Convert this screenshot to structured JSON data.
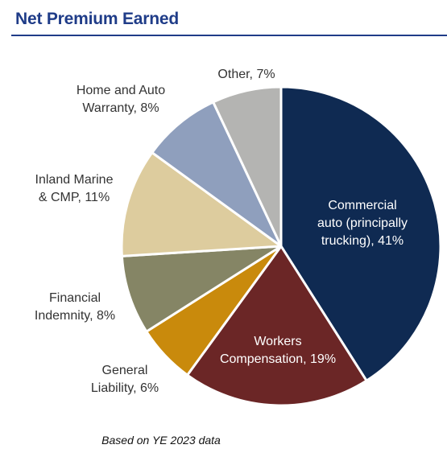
{
  "title": "Net Premium Earned",
  "footnote": "Based on YE 2023 data",
  "chart_data": {
    "type": "pie",
    "title": "Net Premium Earned",
    "unit": "%",
    "slices": [
      {
        "label_lines": [
          "Commercial",
          "auto (principally",
          "trucking), 41%"
        ],
        "category": "Commercial auto (principally trucking)",
        "value": 41,
        "color": "#0f2a52",
        "label_color": "#ffffff",
        "label_inside": true
      },
      {
        "label_lines": [
          "Workers",
          "Compensation, 19%"
        ],
        "category": "Workers Compensation",
        "value": 19,
        "color": "#6b2626",
        "label_color": "#ffffff",
        "label_inside": true
      },
      {
        "label_lines": [
          "General",
          "Liability, 6%"
        ],
        "category": "General Liability",
        "value": 6,
        "color": "#c98a0c",
        "label_color": "#333333",
        "label_inside": false
      },
      {
        "label_lines": [
          "Financial",
          "Indemnity, 8%"
        ],
        "category": "Financial Indemnity",
        "value": 8,
        "color": "#858565",
        "label_color": "#333333",
        "label_inside": false
      },
      {
        "label_lines": [
          "Inland Marine",
          "& CMP, 11%"
        ],
        "category": "Inland Marine & CMP",
        "value": 11,
        "color": "#ddcc9e",
        "label_color": "#333333",
        "label_inside": false
      },
      {
        "label_lines": [
          "Home and Auto",
          "Warranty, 8%"
        ],
        "category": "Home and Auto Warranty",
        "value": 8,
        "color": "#8f9fbd",
        "label_color": "#333333",
        "label_inside": false
      },
      {
        "label_lines": [
          "Other, 7%"
        ],
        "category": "Other",
        "value": 7,
        "color": "#b4b4b2",
        "label_color": "#333333",
        "label_inside": false
      }
    ]
  }
}
